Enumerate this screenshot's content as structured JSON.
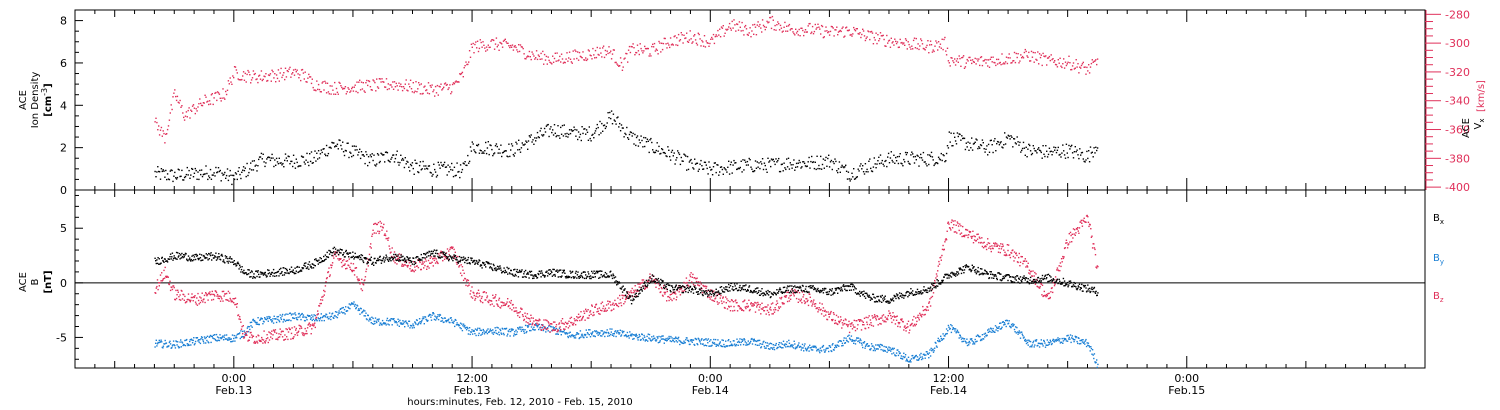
{
  "chart_data": [
    {
      "type": "scatter",
      "panel": "top",
      "left_axis": {
        "label_line1": "ACE",
        "label_line2": "Ion Density",
        "label_unit": "[cm",
        "label_unit_sup": "-3",
        "label_unit_close": "]",
        "ylim": [
          0,
          8.5
        ],
        "ticks": [
          0,
          2,
          4,
          6,
          8
        ],
        "tick_labels": [
          "0",
          "2",
          "4",
          "6",
          "8"
        ]
      },
      "right_axis": {
        "label_line1": "ACE",
        "label_var": "V",
        "label_var_sub": "x",
        "label_unit": "[km/s]",
        "ylim": [
          -402,
          -277
        ],
        "ticks": [
          -400,
          -380,
          -360,
          -340,
          -320,
          -300,
          -280
        ],
        "tick_labels": [
          "-400",
          "-380",
          "-360",
          "-340",
          "-320",
          "-300",
          "-280"
        ]
      },
      "series": [
        {
          "key": "density",
          "axis": "left",
          "color": "#000000",
          "x_hours": [
            -4,
            -3,
            -2,
            -1,
            0,
            1,
            1.5,
            2,
            3,
            4,
            5,
            6,
            7,
            8,
            9,
            10,
            11,
            11.5,
            12,
            13,
            14,
            15,
            16,
            17,
            18,
            18.5,
            19,
            20,
            21,
            22,
            23,
            24,
            25,
            26,
            27,
            28,
            29,
            30,
            31,
            32,
            33,
            34,
            35,
            35.8,
            36,
            37,
            38,
            39,
            40,
            41,
            42,
            43,
            43.5
          ],
          "values": [
            0.8,
            0.7,
            0.8,
            0.9,
            0.6,
            1.2,
            1.5,
            1.4,
            1.4,
            1.5,
            2.2,
            1.8,
            1.4,
            1.7,
            1.1,
            1.0,
            1.0,
            0.9,
            2.1,
            2.0,
            1.9,
            2.4,
            2.9,
            2.7,
            2.7,
            3.1,
            3.5,
            2.5,
            2.1,
            1.7,
            1.2,
            1.0,
            1.1,
            1.2,
            1.2,
            1.3,
            1.3,
            1.4,
            0.8,
            1.2,
            1.5,
            1.5,
            1.5,
            1.6,
            2.5,
            2.2,
            2.0,
            2.5,
            1.9,
            1.8,
            1.9,
            1.6,
            2.3
          ]
        },
        {
          "key": "vx",
          "axis": "right",
          "color": "#e0305a",
          "x_hours": [
            -4,
            -3.5,
            -3,
            -2.5,
            -2,
            -1.5,
            -1,
            -0.5,
            0,
            0.5,
            1,
            2,
            3,
            3.5,
            4,
            5,
            6,
            7,
            8,
            9,
            10,
            11,
            11.5,
            12,
            13,
            14,
            15,
            16,
            17,
            18,
            18.5,
            19,
            19.5,
            20,
            21,
            22,
            23,
            24,
            25,
            26,
            27,
            28,
            29,
            30,
            31,
            32,
            33,
            34,
            35,
            35.8,
            36,
            37,
            38,
            39,
            40,
            41,
            42,
            43,
            43.5
          ],
          "values": [
            -355,
            -365,
            -335,
            -350,
            -345,
            -340,
            -338,
            -335,
            -320,
            -322,
            -323,
            -322,
            -320,
            -322,
            -328,
            -331,
            -330,
            -329,
            -328,
            -330,
            -332,
            -330,
            -322,
            -302,
            -300,
            -302,
            -308,
            -311,
            -309,
            -307,
            -305,
            -306,
            -315,
            -304,
            -305,
            -298,
            -295,
            -299,
            -287,
            -291,
            -285,
            -290,
            -290,
            -292,
            -291,
            -295,
            -298,
            -300,
            -302,
            -300,
            -311,
            -313,
            -312,
            -310,
            -308,
            -312,
            -313,
            -318,
            -312
          ]
        }
      ]
    },
    {
      "type": "scatter",
      "panel": "bottom",
      "left_axis": {
        "label_line1": "ACE",
        "label_var": "B",
        "label_unit": "[nT]",
        "ylim": [
          -7.8,
          8.5
        ],
        "ticks": [
          -5,
          0,
          5
        ],
        "tick_labels": [
          "-5",
          "0",
          "5"
        ]
      },
      "zero_line": true,
      "legend_position": "right",
      "series": [
        {
          "key": "bx",
          "name": "B",
          "name_sub": "x",
          "color": "#000000",
          "x_hours": [
            -4,
            -3,
            -2.5,
            -2,
            -1,
            0,
            0.5,
            1,
            2,
            3,
            4,
            5,
            6,
            7,
            8,
            9,
            10,
            11,
            12,
            13,
            14,
            15,
            16,
            17,
            18,
            19,
            20,
            21,
            22,
            23,
            24,
            25,
            26,
            27,
            28,
            29,
            30,
            31,
            32,
            33,
            34,
            35,
            36,
            37,
            38,
            39,
            40,
            41,
            42,
            43,
            43.5
          ],
          "values": [
            2.0,
            2.5,
            2.5,
            2.3,
            2.5,
            2.0,
            1.0,
            0.8,
            1.0,
            1.2,
            1.8,
            3.0,
            2.5,
            2.0,
            2.5,
            2.0,
            2.8,
            2.3,
            2.0,
            1.5,
            1.0,
            0.8,
            1.0,
            0.8,
            0.8,
            0.8,
            -1.5,
            0.5,
            -0.5,
            -0.5,
            -1.0,
            -0.3,
            -0.5,
            -1.0,
            -0.5,
            -0.5,
            -0.8,
            -0.3,
            -1.3,
            -1.5,
            -0.8,
            -0.5,
            0.8,
            1.5,
            0.8,
            0.5,
            0.3,
            0.5,
            0.0,
            -0.5,
            -0.8
          ]
        },
        {
          "key": "by",
          "name": "B",
          "name_sub": "y",
          "color": "#1a7fd4",
          "x_hours": [
            -4,
            -3,
            -2,
            -1,
            0,
            0.5,
            1,
            2,
            3,
            4,
            5,
            6,
            7,
            8,
            9,
            10,
            11,
            12,
            13,
            14,
            15,
            16,
            17,
            18,
            19,
            20,
            21,
            22,
            23,
            24,
            25,
            26,
            27,
            28,
            29,
            30,
            31,
            32,
            33,
            34,
            35,
            36,
            37,
            38,
            39,
            40,
            41,
            42,
            43,
            43.5
          ],
          "values": [
            -5.5,
            -5.6,
            -5.3,
            -5.0,
            -5.0,
            -4.5,
            -3.5,
            -3.3,
            -3.0,
            -3.2,
            -3.0,
            -2.0,
            -3.5,
            -3.5,
            -3.8,
            -3.0,
            -3.5,
            -4.5,
            -4.3,
            -4.5,
            -4.0,
            -4.2,
            -4.8,
            -4.5,
            -4.5,
            -4.8,
            -5.0,
            -5.2,
            -5.3,
            -5.4,
            -5.5,
            -5.3,
            -5.8,
            -5.5,
            -6.0,
            -6.0,
            -5.0,
            -5.8,
            -6.0,
            -7.0,
            -6.5,
            -4.0,
            -5.5,
            -4.5,
            -3.5,
            -5.5,
            -5.5,
            -5.0,
            -5.5,
            -7.5
          ]
        },
        {
          "key": "bz",
          "name": "B",
          "name_sub": "z",
          "color": "#e0305a",
          "x_hours": [
            -4,
            -3.5,
            -3,
            -2,
            -1,
            0,
            0.5,
            1,
            2,
            3,
            4,
            5,
            6,
            6.5,
            7,
            7.5,
            8,
            9,
            10,
            11,
            12,
            13,
            14,
            15,
            16,
            17,
            18,
            19,
            20,
            21,
            22,
            23,
            24,
            25,
            26,
            27,
            28,
            29,
            30,
            31,
            32,
            33,
            34,
            35,
            36,
            37,
            38,
            39,
            40,
            41,
            42,
            43,
            43.5
          ],
          "values": [
            -0.5,
            1.0,
            -1.0,
            -1.5,
            -1.0,
            -1.3,
            -4.8,
            -5.0,
            -4.8,
            -4.5,
            -4.0,
            2.5,
            1.5,
            -0.5,
            5.0,
            5.2,
            2.5,
            1.5,
            2.0,
            3.0,
            -1.0,
            -1.5,
            -2.0,
            -3.5,
            -4.0,
            -3.5,
            -2.5,
            -2.0,
            -1.0,
            0.5,
            -1.5,
            0.5,
            -1.0,
            -2.0,
            -2.0,
            -2.5,
            -1.0,
            -1.5,
            -3.0,
            -4.0,
            -3.5,
            -3.0,
            -4.0,
            -2.0,
            5.5,
            4.5,
            3.5,
            3.0,
            1.5,
            -1.5,
            4.0,
            6.0,
            1.0
          ]
        }
      ]
    }
  ],
  "x_axis": {
    "range_hours": [
      -8,
      60
    ],
    "ticks": [
      {
        "hours": 0,
        "time": "0:00",
        "date": "Feb.13"
      },
      {
        "hours": 12,
        "time": "12:00",
        "date": "Feb.13"
      },
      {
        "hours": 24,
        "time": "0:00",
        "date": "Feb.14"
      },
      {
        "hours": 36,
        "time": "12:00",
        "date": "Feb.14"
      },
      {
        "hours": 48,
        "time": "0:00",
        "date": "Feb.15"
      }
    ],
    "minor_step_hours": 1,
    "label": "hours:minutes, Feb. 12, 2010 - Feb. 15, 2010"
  }
}
